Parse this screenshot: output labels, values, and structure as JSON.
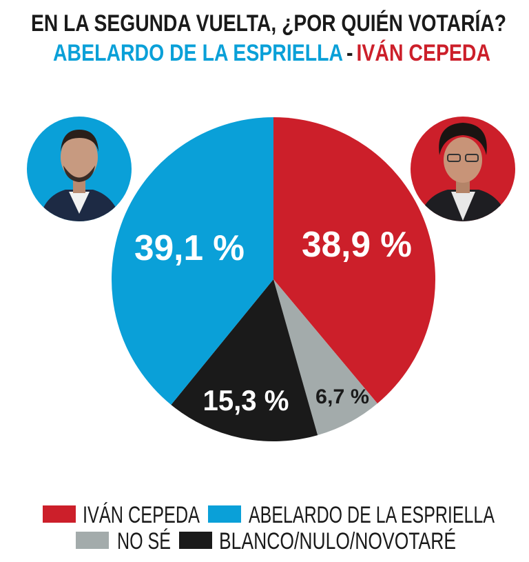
{
  "chart_data": {
    "type": "pie",
    "title": "EN LA SEGUNDA VUELTA, ¿POR QUIÉN VOTARÍA?",
    "subtitle": {
      "left": "ABELARDO DE LA ESPRIELLA",
      "separator": "-",
      "right": "IVÁN CEPEDA"
    },
    "start": "top",
    "direction": "clockwise",
    "slices": [
      {
        "name": "IVÁN CEPEDA",
        "value": 38.9,
        "label": "38,9 %",
        "color": "#cc1f2a"
      },
      {
        "name": "NO SÉ",
        "value": 6.7,
        "label": "6,7 %",
        "color": "#a3abab"
      },
      {
        "name": "BLANCO/NULO/NOVOTARÉ",
        "value": 15.3,
        "label": "15,3 %",
        "color": "#1a1a1a"
      },
      {
        "name": "ABELARDO DE LA ESPRIELLA",
        "value": 39.1,
        "label": "39,1 %",
        "color": "#0aa0d8"
      }
    ],
    "legend_placement": "bottom",
    "legend": [
      "IVÁN CEPEDA",
      "ABELARDO DE LA ESPRIELLA",
      "NO SÉ",
      "BLANCO/NULO/NOVOTARÉ"
    ]
  },
  "colors": {
    "title": "#1a1a1a",
    "blue": "#0aa0d8",
    "red": "#cc1f2a"
  },
  "photos": [
    {
      "person": "ABELARDO DE LA ESPRIELLA",
      "background": "#0aa0d8"
    },
    {
      "person": "IVÁN CEPEDA",
      "background": "#cc1f2a"
    }
  ]
}
